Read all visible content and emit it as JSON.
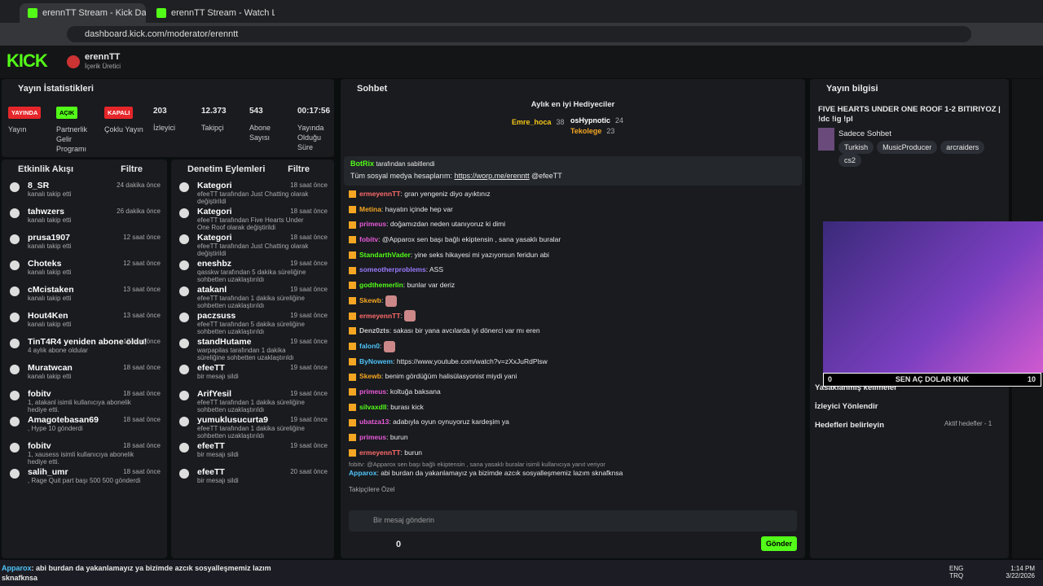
{
  "browser": {
    "tabs": [
      "erennTT Stream - Kick Dashbo",
      "erennTT Stream - Watch Live o"
    ],
    "url": "dashboard.kick.com/moderator/erenntt"
  },
  "header": {
    "logo": "KICK",
    "user": "erennTT",
    "role": "İçerik Üretici"
  },
  "stats": {
    "title": "Yayın İstatistikleri",
    "badges": [
      {
        "badge": "YAYINDA",
        "label": "Yayın",
        "color": "#e5262a"
      },
      {
        "badge": "AÇIK",
        "label": "Partnerlik Gelir Programı",
        "color": "#53fc18"
      },
      {
        "badge": "KAPALI",
        "label": "Çoklu Yayın",
        "color": "#e5262a"
      }
    ],
    "metrics": [
      {
        "value": "203",
        "label": "İzleyici"
      },
      {
        "value": "12.373",
        "label": "Takipçi"
      },
      {
        "value": "543",
        "label": "Abone Sayısı"
      },
      {
        "value": "00:17:56",
        "label": "Yayında Olduğu Süre"
      }
    ]
  },
  "activity": {
    "title": "Etkinlik Akışı",
    "filter": "Filtre",
    "items": [
      {
        "name": "8_SR",
        "desc": "kanalı takip etti",
        "time": "24 dakika önce"
      },
      {
        "name": "tahwzers",
        "desc": "kanalı takip etti",
        "time": "26 dakika önce"
      },
      {
        "name": "prusa1907",
        "desc": "kanalı takip etti",
        "time": "12 saat önce"
      },
      {
        "name": "Choteks",
        "desc": "kanalı takip etti",
        "time": "12 saat önce"
      },
      {
        "name": "cMcistaken",
        "desc": "kanalı takip etti",
        "time": "13 saat önce"
      },
      {
        "name": "Hout4Ken",
        "desc": "kanalı takip etti",
        "time": "13 saat önce"
      },
      {
        "name": "TinT4R4 yeniden abone oldu!",
        "desc": "4 aylık abone oldular",
        "time": "17 saat önce"
      },
      {
        "name": "Muratwcan",
        "desc": "kanalı takip etti",
        "time": "18 saat önce"
      },
      {
        "name": "fobitv",
        "desc": "1, atakanl isimli kullanıcıya abonelik hediye etti.",
        "time": "18 saat önce"
      },
      {
        "name": "Amagotebasan69",
        "desc": ", Hype 10 gönderdi",
        "time": "18 saat önce"
      },
      {
        "name": "fobitv",
        "desc": "1, xausess isimli kullanıcıya abonelik hediye etti.",
        "time": "18 saat önce"
      },
      {
        "name": "salih_umr",
        "desc": ", Rage Quit part başı 500 500 gönderdi",
        "time": "18 saat önce"
      }
    ]
  },
  "moderation": {
    "title": "Denetim Eylemleri",
    "filter": "Filtre",
    "items": [
      {
        "action": "Kategori",
        "desc": "efeeTT tarafından Just Chatting olarak değiştirildi",
        "time": "18 saat önce"
      },
      {
        "action": "Kategori",
        "desc": "efeeTT tarafından Five Hearts Under One Roof olarak değiştirildi",
        "time": "18 saat önce"
      },
      {
        "action": "Kategori",
        "desc": "efeeTT tarafından Just Chatting olarak değiştirildi",
        "time": "18 saat önce"
      },
      {
        "action": "eneshbz",
        "desc": "qasskw tarafından 5 dakika süreliğine sohbetten uzaklaştırıldı",
        "time": "19 saat önce"
      },
      {
        "action": "atakanl",
        "desc": "efeeTT tarafından 1 dakika süreliğine sohbetten uzaklaştırıldı",
        "time": "19 saat önce"
      },
      {
        "action": "paczsuss",
        "desc": "efeeTT tarafından 5 dakika süreliğine sohbetten uzaklaştırıldı",
        "time": "19 saat önce"
      },
      {
        "action": "standHutame",
        "desc": "warpapilas tarafından 1 dakika süreliğine sohbetten uzaklaştırıldı",
        "time": "19 saat önce"
      },
      {
        "action": "efeeTT",
        "desc": "bir mesajı sildi",
        "time": "19 saat önce"
      },
      {
        "action": "ArifYesil",
        "desc": "efeeTT tarafından 1 dakika süreliğine sohbetten uzaklaştırıldı",
        "time": "19 saat önce"
      },
      {
        "action": "yumuklusucurta9",
        "desc": "efeeTT tarafından 1 dakika süreliğine sohbetten uzaklaştırıldı",
        "time": "19 saat önce"
      },
      {
        "action": "efeeTT",
        "desc": "bir mesajı sildi",
        "time": "19 saat önce"
      },
      {
        "action": "efeeTT",
        "desc": "bir mesajı sildi",
        "time": "20 saat önce"
      }
    ]
  },
  "chat": {
    "title": "Sohbet",
    "gifters_title": "Aylık en iyi Hediyeciler",
    "gifters": [
      {
        "name": "Emre_hoca",
        "count": "38"
      },
      {
        "name": "osHypnotic",
        "count": "24"
      },
      {
        "name": "Tekolege",
        "count": "23"
      }
    ],
    "pinned": {
      "by": "BotRix",
      "label": "tarafından sabitlendi",
      "text": "Tüm sosyal medya hesaplarım:",
      "link": "https://worp.me/erenntt",
      "suffix": "@efeeTT"
    },
    "messages": [
      {
        "user": "ermeyennTT",
        "color": "#ff6b6b",
        "text": "gran yengeniz diyo ayıktınız"
      },
      {
        "user": "Metina",
        "color": "#f5a623",
        "text": "hayatın içinde hep var"
      },
      {
        "user": "primeus",
        "color": "#e85ad8",
        "text": "doğamızdan neden utanıyoruz ki dimi"
      },
      {
        "user": "fobitv",
        "color": "#e85ad8",
        "text": "@Apparox sen başı bağlı ekiptensin , sana yasaklı buralar"
      },
      {
        "user": "StandarthVader",
        "color": "#53fc18",
        "text": "yine seks hikayesi mi yazıyorsun feridun abi"
      },
      {
        "user": "someotherproblems",
        "color": "#9b7bff",
        "text": "ASS"
      },
      {
        "user": "godthemerlin",
        "color": "#53fc18",
        "text": "bunlar var deriz"
      },
      {
        "user": "Skewb",
        "color": "#f5a623"
      },
      {
        "user": "ermeyennTT",
        "color": "#ff6b6b"
      },
      {
        "user": "Denz0zts",
        "color": "#cccccc",
        "text": "sakası bir yana avcılarda iyi dönerci var mı eren"
      },
      {
        "user": "falon0",
        "color": "#4fc3f7"
      },
      {
        "user": "ByNowem",
        "color": "#4fc3f7",
        "text": "https://www.youtube.com/watch?v=zXxJuRdPlsw"
      },
      {
        "user": "Skewb",
        "color": "#f5a623",
        "text": "benim gördüğüm halisülasyonist miydi yani"
      },
      {
        "user": "primeus",
        "color": "#e85ad8",
        "text": "koltuğa baksana"
      },
      {
        "user": "silvaxdll",
        "color": "#53fc18",
        "text": "burası kick"
      },
      {
        "user": "ubatza13",
        "color": "#e85ad8",
        "text": "adabıyla oyun oynuyoruz kardeşim ya"
      },
      {
        "user": "primeus",
        "color": "#e85ad8",
        "text": "burun"
      },
      {
        "user": "ermeyennTT",
        "color": "#ff6b6b",
        "text": "burun"
      }
    ],
    "reply": {
      "quote": "fobitv: @Apparox sen başı bağlı ekiptensin , sana yasaklı buralar",
      "note": "isimli kullanıcıya yanıt veriyor",
      "user": "Apparox",
      "text": "abi burdan da yakanlamayız ya bizimde azcık sosyalleşmemiz lazım sknafknsa"
    },
    "followers_only": "Takipçilere Özel",
    "placeholder": "Bir mesaj gönderin",
    "count": "0",
    "send": "Gönder"
  },
  "info": {
    "title": "Yayın bilgisi",
    "stream_title": "FIVE HEARTS UNDER ONE ROOF 1-2 BITIRIYOZ | !dc !ig !pl",
    "category": "Sadece Sohbet",
    "tags": [
      "Turkish",
      "MusicProducer",
      "arcraiders",
      "cs2"
    ],
    "rows": [
      "Yasaklanmış kelimeler",
      "İzleyici Yönlendir",
      "Hedefleri belirleyin"
    ],
    "active_goals": "Aktif hedefler - 1"
  },
  "overlay": {
    "left": "0",
    "text": "SEN AÇ DOLAR KNK",
    "right": "10"
  },
  "ticker": {
    "user": "Apparox",
    "text": ": abi burdan da yakanlamayız ya bizimde azcık sosyalleşmemiz lazım sknafknsa"
  },
  "taskbar": {
    "lang": "ENG",
    "layout": "TRQ",
    "time": "1:14 PM",
    "date": "3/22/2026"
  }
}
